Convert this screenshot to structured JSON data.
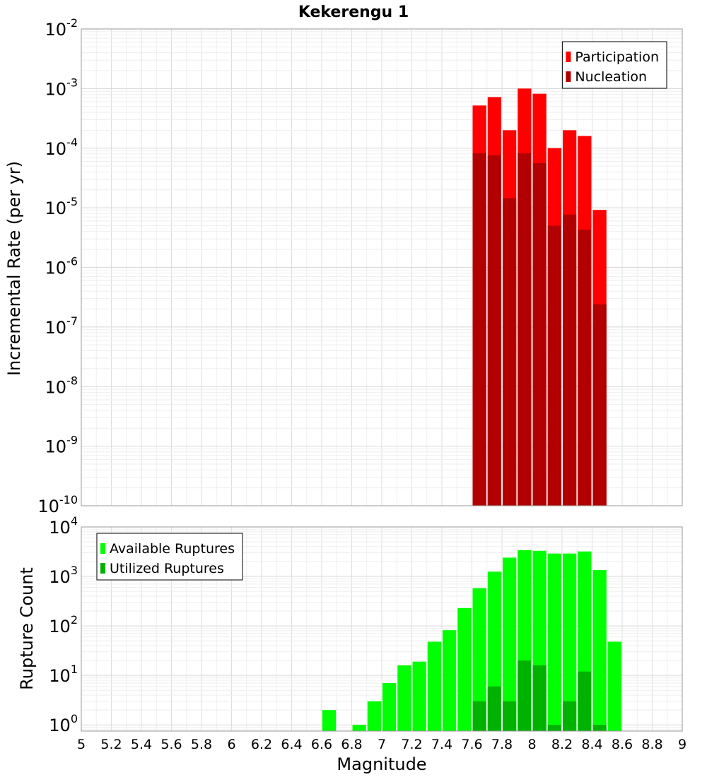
{
  "chart_data": [
    {
      "type": "bar",
      "title": "Kekerengu 1",
      "ylabel": "Incremental Rate (per yr)",
      "xlabel": "",
      "y_scale": "log",
      "ylim": [
        1e-10,
        0.01
      ],
      "xlim": [
        5,
        9
      ],
      "y_tick_labels": [
        {
          "base": "10",
          "exp": "-10"
        },
        {
          "base": "10",
          "exp": "-9"
        },
        {
          "base": "10",
          "exp": "-8"
        },
        {
          "base": "10",
          "exp": "-7"
        },
        {
          "base": "10",
          "exp": "-6"
        },
        {
          "base": "10",
          "exp": "-5"
        },
        {
          "base": "10",
          "exp": "-4"
        },
        {
          "base": "10",
          "exp": "-3"
        },
        {
          "base": "10",
          "exp": "-2"
        }
      ],
      "grid": true,
      "legend_position": "top-right",
      "bar_width": 0.1,
      "x": [
        7.65,
        7.75,
        7.85,
        7.95,
        8.05,
        8.15,
        8.25,
        8.35,
        8.45
      ],
      "series": [
        {
          "name": "Participation",
          "color": "#ff0000",
          "values": [
            0.00052,
            0.00072,
            0.0002,
            0.001,
            0.00082,
            0.0001,
            0.0002,
            0.00016,
            9.2e-06
          ]
        },
        {
          "name": "Nucleation",
          "color": "#b20000",
          "values": [
            8.2e-05,
            7.6e-05,
            1.45e-05,
            8.2e-05,
            5.6e-05,
            5e-06,
            7.7e-06,
            4.3e-06,
            2.4e-07
          ]
        }
      ]
    },
    {
      "type": "bar",
      "title": "",
      "ylabel": "Rupture Count",
      "xlabel": "Magnitude",
      "y_scale": "log",
      "ylim": [
        0.75,
        10000
      ],
      "xlim": [
        5,
        9
      ],
      "y_tick_labels": [
        {
          "base": "10",
          "exp": "0"
        },
        {
          "base": "10",
          "exp": "1"
        },
        {
          "base": "10",
          "exp": "2"
        },
        {
          "base": "10",
          "exp": "3"
        },
        {
          "base": "10",
          "exp": "4"
        }
      ],
      "x_tick_labels": [
        "5",
        "5.2",
        "5.4",
        "5.6",
        "5.8",
        "6",
        "6.2",
        "6.4",
        "6.6",
        "6.8",
        "7",
        "7.2",
        "7.4",
        "7.6",
        "7.8",
        "8",
        "8.2",
        "8.4",
        "8.6",
        "8.8",
        "9"
      ],
      "grid": true,
      "legend_position": "top-left",
      "bar_width": 0.1,
      "series": [
        {
          "name": "Available Ruptures",
          "color": "#00ff00",
          "x": [
            6.65,
            6.85,
            6.95,
            7.05,
            7.15,
            7.25,
            7.35,
            7.45,
            7.55,
            7.65,
            7.75,
            7.85,
            7.95,
            8.05,
            8.15,
            8.25,
            8.35,
            8.45,
            8.55
          ],
          "values": [
            2,
            1,
            3,
            7,
            16,
            19,
            48,
            82,
            230,
            580,
            1250,
            2400,
            3400,
            3300,
            2900,
            2900,
            3200,
            1350,
            48
          ]
        },
        {
          "name": "Utilized Ruptures",
          "color": "#00b200",
          "x": [
            7.65,
            7.75,
            7.85,
            7.95,
            8.05,
            8.15,
            8.25,
            8.35,
            8.45
          ],
          "values": [
            3,
            6,
            3,
            20,
            16,
            1,
            3,
            12,
            1
          ]
        }
      ]
    }
  ]
}
